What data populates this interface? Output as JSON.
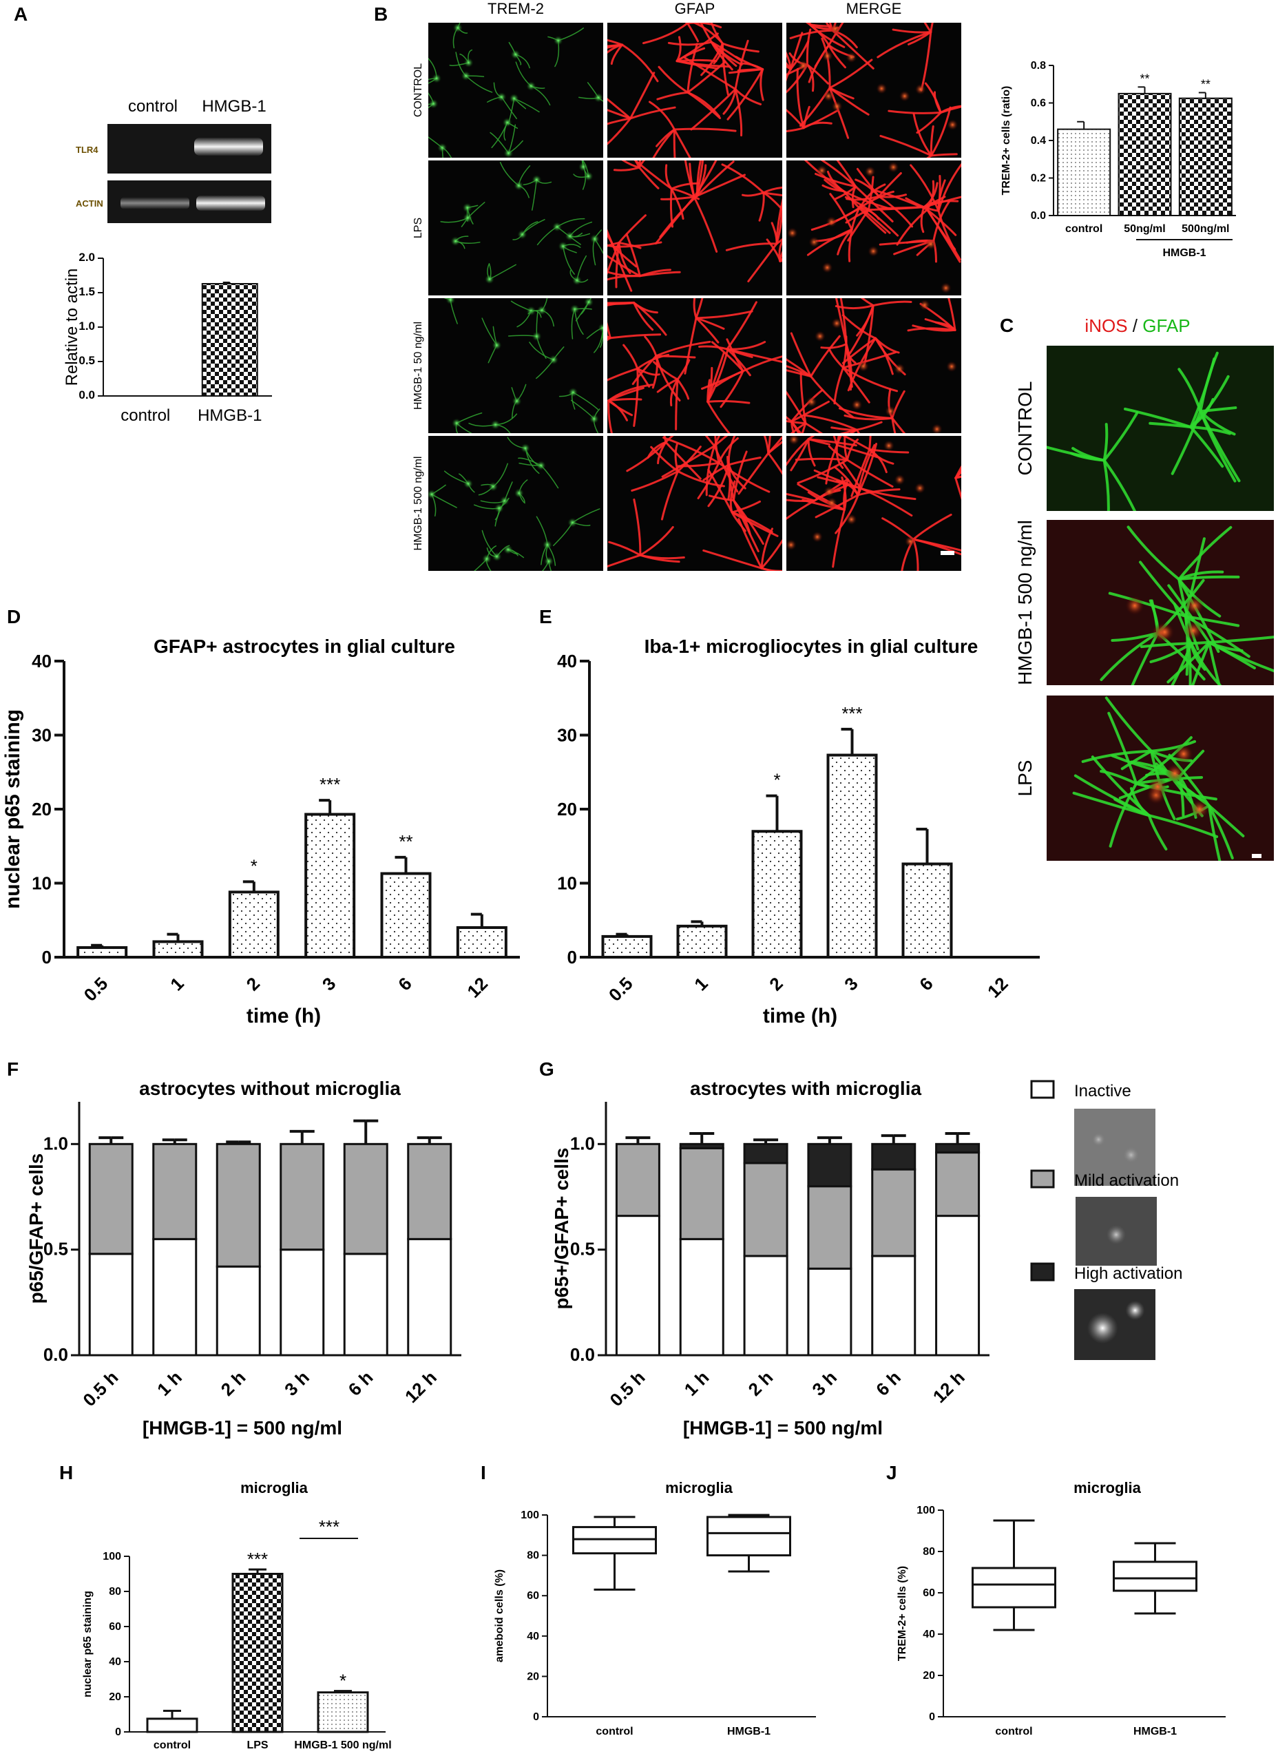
{
  "panels": {
    "A": {
      "label": "A",
      "gel_lanes": [
        "control",
        "HMGB-1"
      ],
      "gel_rows": [
        "TLR4",
        "ACTIN"
      ],
      "chart_index": 0
    },
    "B": {
      "label": "B",
      "columns": [
        "TREM-2",
        "GFAP",
        "MERGE"
      ],
      "rows": [
        "CONTROL",
        "LPS",
        "HMGB-1 50 ng/ml",
        "HMGB-1 500 ng/ml"
      ],
      "chart_index": 1,
      "group_label": "HMGB-1"
    },
    "C": {
      "label": "C",
      "title_parts": [
        "iNOS",
        " / ",
        "GFAP"
      ],
      "rows": [
        "CONTROL",
        "HMGB-1 500 ng/ml",
        "LPS"
      ]
    },
    "D": {
      "label": "D",
      "chart_index": 2
    },
    "E": {
      "label": "E",
      "chart_index": 3
    },
    "F": {
      "label": "F",
      "chart_index": 4
    },
    "G": {
      "label": "G",
      "chart_index": 5,
      "legend": [
        "Inactive",
        "Mild activation",
        "High activation"
      ]
    },
    "H": {
      "label": "H",
      "chart_index": 6
    },
    "I": {
      "label": "I",
      "chart_index": 7
    },
    "J": {
      "label": "J",
      "chart_index": 8
    }
  },
  "chart_data": [
    {
      "type": "bar",
      "panel": "A",
      "categories": [
        "control",
        "HMGB-1"
      ],
      "values": [
        0.0,
        1.63
      ],
      "errors": [
        0,
        0.02
      ],
      "ylabel": "Relative to actin",
      "ylim": [
        0,
        2.0
      ],
      "yticks": [
        "0.0",
        "0.5",
        "1.0",
        "1.5",
        "2.0"
      ]
    },
    {
      "type": "bar",
      "panel": "B",
      "categories": [
        "control",
        "50ng/ml",
        "500ng/ml"
      ],
      "values": [
        0.46,
        0.65,
        0.625
      ],
      "errors": [
        0.04,
        0.035,
        0.03
      ],
      "annotations": [
        "",
        "**",
        "**"
      ],
      "ylabel": "TREM-2+ cells (ratio)",
      "ylim": [
        0,
        0.8
      ],
      "yticks": [
        "0.0",
        "0.2",
        "0.4",
        "0.6",
        "0.8"
      ]
    },
    {
      "type": "bar",
      "panel": "D",
      "title": "GFAP+ astrocytes in glial culture",
      "categories": [
        "0.5",
        "1",
        "2",
        "3",
        "6",
        "12"
      ],
      "values": [
        1.3,
        2.1,
        8.8,
        19.3,
        11.3,
        4.0
      ],
      "errors": [
        0.3,
        1.0,
        1.4,
        1.9,
        2.2,
        1.8
      ],
      "annotations": [
        "",
        "",
        "*",
        "***",
        "**",
        ""
      ],
      "xlabel": "time (h)",
      "ylabel": "nuclear p65 staining",
      "ylim": [
        0,
        40
      ],
      "yticks": [
        "0",
        "10",
        "20",
        "30",
        "40"
      ]
    },
    {
      "type": "bar",
      "panel": "E",
      "title": "Iba-1+ microgliocytes in glial culture",
      "categories": [
        "0.5",
        "1",
        "2",
        "3",
        "6",
        "12"
      ],
      "values": [
        2.8,
        4.2,
        17.0,
        27.3,
        12.6,
        0
      ],
      "errors": [
        0.3,
        0.6,
        4.8,
        3.5,
        4.7,
        0
      ],
      "annotations": [
        "",
        "",
        "*",
        "***",
        "",
        ""
      ],
      "xlabel": "time (h)",
      "ylim": [
        0,
        40
      ],
      "yticks": [
        "0",
        "10",
        "20",
        "30",
        "40"
      ]
    },
    {
      "type": "stacked_bar",
      "panel": "F",
      "title": "astrocytes without microglia",
      "categories": [
        "0.5 h",
        "1 h",
        "2 h",
        "3 h",
        "6 h",
        "12 h"
      ],
      "series": [
        {
          "values": [
            0.48,
            0.55,
            0.42,
            0.5,
            0.48,
            0.55
          ],
          "errors": [
            0.08,
            0.04,
            0.01,
            0.05,
            0.12,
            0.03
          ]
        },
        {
          "values": [
            0.52,
            0.45,
            0.58,
            0.5,
            0.52,
            0.45
          ],
          "errors": [
            0.03,
            0.02,
            0.01,
            0.06,
            0.11,
            0.03
          ]
        }
      ],
      "xlabel": "[HMGB-1] = 500 ng/ml",
      "ylabel": "p65/GFAP+ cells",
      "ylim": [
        0,
        1.2
      ],
      "yticks": [
        "0.0",
        "0.5",
        "1.0"
      ]
    },
    {
      "type": "stacked_bar",
      "panel": "G",
      "title": "astrocytes with microglia",
      "categories": [
        "0.5 h",
        "1 h",
        "2 h",
        "3 h",
        "6 h",
        "12 h"
      ],
      "series": [
        {
          "values": [
            0.66,
            0.55,
            0.47,
            0.41,
            0.47,
            0.66
          ],
          "errors": [
            0.05,
            0.09,
            0.03,
            0.1,
            0.03,
            0.09
          ]
        },
        {
          "values": [
            0.34,
            0.43,
            0.44,
            0.39,
            0.41,
            0.3
          ],
          "errors": [
            0,
            0,
            0,
            0,
            0,
            0
          ]
        },
        {
          "values": [
            0.0,
            0.02,
            0.09,
            0.2,
            0.12,
            0.04
          ],
          "errors": [
            0.03,
            0.05,
            0.02,
            0.03,
            0.04,
            0.05
          ]
        }
      ],
      "xlabel": "[HMGB-1] = 500 ng/ml",
      "ylabel": "p65+/GFAP+ cells",
      "ylim": [
        0,
        1.2
      ],
      "yticks": [
        "0.0",
        "0.5",
        "1.0"
      ]
    },
    {
      "type": "bar",
      "panel": "H",
      "title": "microglia",
      "categories": [
        "control",
        "LPS",
        "HMGB-1 500 ng/ml"
      ],
      "values": [
        7.5,
        90.0,
        22.5
      ],
      "errors": [
        4.5,
        2.5,
        0.8
      ],
      "annotations": [
        "",
        "***",
        "*"
      ],
      "bracket": "***",
      "ylabel": "nuclear p65 staining",
      "ylim": [
        0,
        100
      ],
      "yticks": [
        "0",
        "20",
        "40",
        "60",
        "80",
        "100"
      ]
    },
    {
      "type": "box",
      "panel": "I",
      "title": "microglia",
      "categories": [
        "control",
        "HMGB-1"
      ],
      "boxes": [
        {
          "min": 63,
          "q1": 81,
          "median": 88,
          "q3": 94,
          "max": 99
        },
        {
          "min": 72,
          "q1": 80,
          "median": 91,
          "q3": 99,
          "max": 100
        }
      ],
      "ylabel": "ameboid cells (%)",
      "ylim": [
        0,
        100
      ],
      "yticks": [
        "0",
        "20",
        "40",
        "60",
        "80",
        "100"
      ]
    },
    {
      "type": "box",
      "panel": "J",
      "title": "microglia",
      "categories": [
        "control",
        "HMGB-1"
      ],
      "boxes": [
        {
          "min": 42,
          "q1": 53,
          "median": 64,
          "q3": 72,
          "max": 95
        },
        {
          "min": 50,
          "q1": 61,
          "median": 67,
          "q3": 75,
          "max": 84
        }
      ],
      "ylabel": "TREM-2+ cells (%)",
      "ylim": [
        0,
        100
      ],
      "yticks": [
        "0",
        "20",
        "40",
        "60",
        "80",
        "100"
      ]
    }
  ]
}
